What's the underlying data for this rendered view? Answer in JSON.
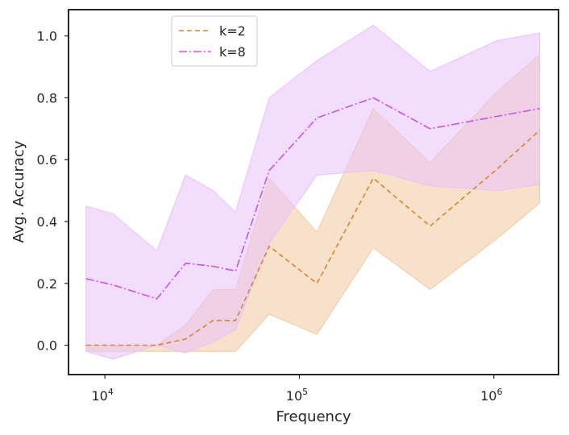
{
  "chart_data": {
    "type": "line",
    "x_scale": "log",
    "xlabel": "Frequency",
    "ylabel": "Avg. Accuracy",
    "xlim": [
      6500,
      2150000
    ],
    "ylim": [
      -0.095,
      1.085
    ],
    "y_ticks": [
      0.0,
      0.2,
      0.4,
      0.6,
      0.8,
      1.0
    ],
    "y_tick_labels": [
      "0.0",
      "0.2",
      "0.4",
      "0.6",
      "0.8",
      "1.0"
    ],
    "x_ticks": [
      {
        "value": 10000,
        "base": "10",
        "exp": "4"
      },
      {
        "value": 100000,
        "base": "10",
        "exp": "5"
      },
      {
        "value": 1000000,
        "base": "10",
        "exp": "6"
      }
    ],
    "grid": false,
    "legend_position": "top-left",
    "x": [
      8000,
      11000,
      18500,
      26000,
      36000,
      47000,
      70000,
      123000,
      240000,
      470000,
      1040000,
      1720000
    ],
    "series": [
      {
        "name": "k=2",
        "color": "#d4862e",
        "fill": "#f2c9a0",
        "dash": "6,4",
        "values": [
          0.0,
          0.0,
          0.0,
          0.02,
          0.08,
          0.08,
          0.32,
          0.2,
          0.54,
          0.385,
          0.57,
          0.695
        ],
        "lower": [
          -0.02,
          -0.02,
          -0.02,
          -0.02,
          -0.02,
          -0.02,
          0.1,
          0.035,
          0.315,
          0.18,
          0.345,
          0.46
        ],
        "upper": [
          0.0,
          0.0,
          0.0,
          0.065,
          0.18,
          0.18,
          0.54,
          0.365,
          0.765,
          0.59,
          0.82,
          0.94
        ]
      },
      {
        "name": "k=8",
        "color": "#c754e6",
        "fill": "#e7c2fa",
        "dash": "10,3,2,3",
        "values": [
          0.215,
          0.195,
          0.15,
          0.265,
          0.255,
          0.24,
          0.565,
          0.735,
          0.8,
          0.7,
          0.74,
          0.765
        ],
        "lower": [
          -0.02,
          -0.045,
          0.0,
          -0.025,
          0.01,
          0.05,
          0.33,
          0.55,
          0.565,
          0.515,
          0.5,
          0.52
        ],
        "upper": [
          0.45,
          0.425,
          0.305,
          0.55,
          0.5,
          0.43,
          0.8,
          0.92,
          1.035,
          0.885,
          0.985,
          1.01
        ]
      }
    ]
  }
}
